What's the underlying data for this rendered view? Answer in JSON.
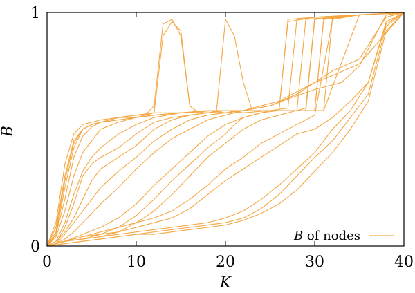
{
  "colors": {
    "series": "#f4a742",
    "axes": "#000000"
  },
  "chart_data": {
    "type": "line",
    "title": "",
    "xlabel": "K",
    "ylabel": "B",
    "xlim": [
      0,
      40
    ],
    "ylim": [
      0,
      1
    ],
    "xticks": [
      0,
      10,
      20,
      30,
      40
    ],
    "yticks": [
      0,
      1
    ],
    "xtick_labels": [
      "0",
      "10",
      "20",
      "30",
      "40"
    ],
    "ytick_labels": [
      "0",
      "1"
    ],
    "legend": {
      "placement": "bottom-right",
      "entries": [
        {
          "label_italic": "B",
          "label_rest": " of nodes"
        }
      ]
    },
    "grid": false,
    "series": [
      {
        "x": [
          0,
          1,
          2,
          3,
          4,
          5,
          6,
          8,
          10,
          12,
          15,
          18,
          20,
          22,
          25,
          28,
          29,
          30,
          32,
          35,
          38,
          40
        ],
        "y": [
          0,
          0.08,
          0.3,
          0.45,
          0.5,
          0.52,
          0.53,
          0.54,
          0.55,
          0.56,
          0.57,
          0.58,
          0.57,
          0.58,
          0.58,
          0.58,
          0.59,
          0.97,
          0.98,
          0.99,
          0.99,
          1
        ]
      },
      {
        "x": [
          0,
          1,
          2,
          3,
          4,
          5,
          6,
          8,
          10,
          12,
          15,
          18,
          20,
          22,
          25,
          27,
          28,
          30,
          35,
          40
        ],
        "y": [
          0,
          0.05,
          0.25,
          0.42,
          0.5,
          0.52,
          0.53,
          0.55,
          0.55,
          0.57,
          0.57,
          0.58,
          0.58,
          0.57,
          0.58,
          0.59,
          0.97,
          0.98,
          0.99,
          1
        ]
      },
      {
        "x": [
          0,
          1,
          2,
          3,
          4,
          5,
          6,
          8,
          10,
          11,
          12,
          13,
          14,
          15,
          16,
          17,
          18,
          20,
          25,
          30,
          31,
          35,
          40
        ],
        "y": [
          0,
          0.1,
          0.35,
          0.48,
          0.52,
          0.53,
          0.54,
          0.55,
          0.56,
          0.56,
          0.6,
          0.95,
          0.97,
          0.9,
          0.6,
          0.57,
          0.57,
          0.58,
          0.58,
          0.58,
          0.97,
          0.99,
          1
        ]
      },
      {
        "x": [
          0,
          1,
          2,
          3,
          4,
          5,
          6,
          8,
          10,
          12,
          13,
          14,
          15,
          16,
          17,
          18,
          20,
          25,
          29,
          30,
          35,
          40
        ],
        "y": [
          0,
          0.06,
          0.28,
          0.44,
          0.5,
          0.52,
          0.53,
          0.55,
          0.56,
          0.57,
          0.9,
          0.96,
          0.92,
          0.6,
          0.57,
          0.58,
          0.58,
          0.58,
          0.58,
          0.97,
          0.99,
          1
        ]
      },
      {
        "x": [
          0,
          1,
          2,
          3,
          4,
          5,
          6,
          8,
          10,
          12,
          15,
          19,
          20,
          21,
          22,
          23,
          25,
          28,
          29,
          35,
          40
        ],
        "y": [
          0,
          0.05,
          0.2,
          0.38,
          0.47,
          0.51,
          0.53,
          0.54,
          0.55,
          0.56,
          0.57,
          0.58,
          0.97,
          0.9,
          0.7,
          0.58,
          0.58,
          0.58,
          0.97,
          0.99,
          1
        ]
      },
      {
        "x": [
          0,
          1,
          2,
          3,
          4,
          5,
          6,
          8,
          10,
          12,
          15,
          18,
          20,
          22,
          24,
          26,
          27,
          30,
          35,
          40
        ],
        "y": [
          0,
          0.04,
          0.15,
          0.3,
          0.4,
          0.45,
          0.5,
          0.53,
          0.55,
          0.56,
          0.57,
          0.57,
          0.58,
          0.58,
          0.58,
          0.58,
          0.96,
          0.98,
          0.99,
          1
        ]
      },
      {
        "x": [
          0,
          1,
          2,
          3,
          4,
          5,
          6,
          8,
          10,
          12,
          15,
          18,
          20,
          22,
          24,
          26,
          29,
          30,
          35,
          40
        ],
        "y": [
          0,
          0.02,
          0.1,
          0.22,
          0.32,
          0.38,
          0.42,
          0.48,
          0.52,
          0.55,
          0.57,
          0.57,
          0.58,
          0.58,
          0.58,
          0.58,
          0.58,
          0.98,
          0.99,
          1
        ]
      },
      {
        "x": [
          0,
          1,
          2,
          3,
          4,
          5,
          6,
          8,
          10,
          12,
          14,
          16,
          18,
          20,
          22,
          25,
          28,
          30,
          31,
          35,
          40
        ],
        "y": [
          0,
          0.01,
          0.08,
          0.18,
          0.3,
          0.35,
          0.38,
          0.42,
          0.48,
          0.53,
          0.55,
          0.56,
          0.57,
          0.58,
          0.58,
          0.58,
          0.58,
          0.58,
          0.97,
          0.99,
          1
        ]
      },
      {
        "x": [
          0,
          1,
          2,
          3,
          4,
          5,
          6,
          8,
          10,
          12,
          14,
          16,
          18,
          20,
          22,
          25,
          28,
          30,
          32,
          35,
          38,
          40
        ],
        "y": [
          0,
          0.02,
          0.06,
          0.12,
          0.2,
          0.28,
          0.33,
          0.38,
          0.43,
          0.5,
          0.54,
          0.56,
          0.57,
          0.57,
          0.58,
          0.6,
          0.65,
          0.7,
          0.75,
          0.8,
          0.98,
          1
        ]
      },
      {
        "x": [
          0,
          1,
          2,
          3,
          4,
          5,
          6,
          8,
          10,
          12,
          14,
          16,
          18,
          20,
          22,
          25,
          27,
          30,
          33,
          35,
          38,
          40
        ],
        "y": [
          0,
          0.01,
          0.05,
          0.1,
          0.15,
          0.2,
          0.25,
          0.32,
          0.38,
          0.45,
          0.5,
          0.54,
          0.56,
          0.57,
          0.58,
          0.6,
          0.63,
          0.67,
          0.7,
          0.77,
          0.99,
          1
        ]
      },
      {
        "x": [
          0,
          1,
          2,
          3,
          4,
          5,
          6,
          8,
          10,
          12,
          14,
          16,
          18,
          20,
          22,
          24,
          26,
          28,
          30,
          32,
          35,
          40
        ],
        "y": [
          0,
          0.01,
          0.03,
          0.06,
          0.1,
          0.14,
          0.18,
          0.25,
          0.33,
          0.4,
          0.46,
          0.5,
          0.54,
          0.56,
          0.58,
          0.6,
          0.62,
          0.66,
          0.7,
          0.73,
          0.78,
          1
        ]
      },
      {
        "x": [
          0,
          1,
          2,
          4,
          6,
          8,
          10,
          12,
          14,
          16,
          18,
          20,
          22,
          24,
          25,
          26,
          28,
          29,
          30,
          31,
          35,
          40
        ],
        "y": [
          0,
          0.01,
          0.02,
          0.05,
          0.08,
          0.12,
          0.18,
          0.26,
          0.33,
          0.4,
          0.47,
          0.52,
          0.55,
          0.57,
          0.58,
          0.58,
          0.58,
          0.58,
          0.58,
          0.58,
          0.99,
          1
        ]
      },
      {
        "x": [
          0,
          1,
          2,
          4,
          6,
          8,
          10,
          12,
          14,
          16,
          18,
          20,
          21,
          22,
          24,
          26,
          27,
          30,
          35,
          40
        ],
        "y": [
          0,
          0.01,
          0.02,
          0.03,
          0.05,
          0.08,
          0.13,
          0.2,
          0.28,
          0.35,
          0.42,
          0.48,
          0.52,
          0.55,
          0.57,
          0.58,
          0.97,
          0.98,
          0.99,
          1
        ]
      },
      {
        "x": [
          0,
          2,
          4,
          6,
          8,
          10,
          12,
          14,
          16,
          18,
          20,
          22,
          24,
          26,
          28,
          30,
          31,
          32,
          35,
          40
        ],
        "y": [
          0,
          0.02,
          0.03,
          0.04,
          0.06,
          0.1,
          0.15,
          0.22,
          0.3,
          0.38,
          0.44,
          0.5,
          0.54,
          0.56,
          0.58,
          0.58,
          0.58,
          0.98,
          0.99,
          1
        ]
      },
      {
        "x": [
          0,
          2,
          4,
          6,
          8,
          10,
          12,
          14,
          16,
          18,
          20,
          22,
          24,
          26,
          28,
          30,
          32,
          35,
          40
        ],
        "y": [
          0,
          0.02,
          0.04,
          0.06,
          0.08,
          0.1,
          0.12,
          0.15,
          0.2,
          0.26,
          0.33,
          0.38,
          0.44,
          0.48,
          0.52,
          0.56,
          0.97,
          0.99,
          1
        ]
      },
      {
        "x": [
          0,
          2,
          4,
          6,
          8,
          10,
          12,
          14,
          16,
          18,
          20,
          22,
          24,
          26,
          28,
          30,
          32,
          34,
          36,
          38,
          40
        ],
        "y": [
          0,
          0.02,
          0.04,
          0.05,
          0.06,
          0.08,
          0.1,
          0.12,
          0.16,
          0.22,
          0.28,
          0.33,
          0.38,
          0.43,
          0.48,
          0.5,
          0.55,
          0.62,
          0.7,
          0.95,
          1
        ]
      },
      {
        "x": [
          0,
          2,
          4,
          6,
          8,
          10,
          12,
          14,
          16,
          18,
          20,
          22,
          24,
          26,
          28,
          30,
          32,
          34,
          36,
          38,
          40
        ],
        "y": [
          0,
          0.02,
          0.03,
          0.04,
          0.05,
          0.06,
          0.07,
          0.08,
          0.09,
          0.1,
          0.12,
          0.15,
          0.2,
          0.26,
          0.33,
          0.4,
          0.5,
          0.58,
          0.7,
          0.96,
          1
        ]
      },
      {
        "x": [
          0,
          2,
          4,
          6,
          8,
          10,
          12,
          14,
          16,
          18,
          20,
          22,
          24,
          26,
          28,
          30,
          32,
          34,
          36,
          38,
          40
        ],
        "y": [
          0,
          0.01,
          0.02,
          0.03,
          0.04,
          0.05,
          0.06,
          0.07,
          0.08,
          0.09,
          0.1,
          0.12,
          0.16,
          0.22,
          0.3,
          0.38,
          0.45,
          0.55,
          0.65,
          0.94,
          1
        ]
      },
      {
        "x": [
          0,
          2,
          4,
          6,
          8,
          10,
          12,
          14,
          16,
          18,
          20,
          22,
          24,
          26,
          28,
          30,
          32,
          34,
          36,
          38,
          40
        ],
        "y": [
          0,
          0.01,
          0.02,
          0.03,
          0.04,
          0.05,
          0.05,
          0.06,
          0.07,
          0.08,
          0.09,
          0.11,
          0.14,
          0.18,
          0.24,
          0.32,
          0.4,
          0.5,
          0.62,
          0.92,
          1
        ]
      }
    ]
  }
}
